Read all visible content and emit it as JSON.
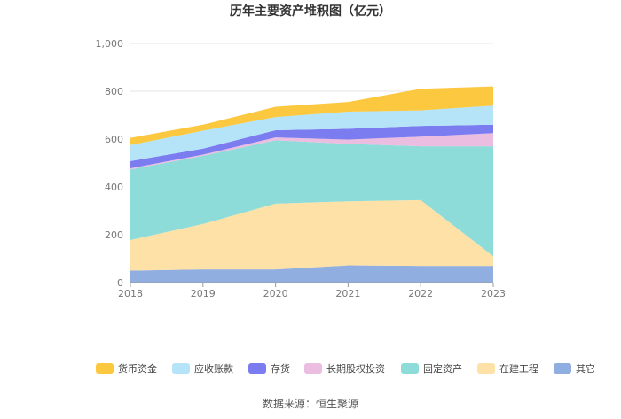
{
  "chart_data": {
    "type": "area",
    "stacked": true,
    "title": "历年主要资产堆积图（亿元）",
    "xlabel": "",
    "ylabel": "",
    "x": [
      "2018",
      "2019",
      "2020",
      "2021",
      "2022",
      "2023"
    ],
    "ylim": [
      0,
      1000
    ],
    "yticks": [
      "0",
      "200",
      "400",
      "600",
      "800",
      "1,000"
    ],
    "grid": true,
    "legend_position": "bottom",
    "series": [
      {
        "name": "其它",
        "color": "#91aee0",
        "values": [
          50,
          55,
          55,
          72,
          70,
          70
        ]
      },
      {
        "name": "在建工程",
        "color": "#fde1a7",
        "values": [
          128,
          190,
          275,
          268,
          275,
          40
        ]
      },
      {
        "name": "固定资产",
        "color": "#8ddcd9",
        "values": [
          295,
          285,
          265,
          240,
          225,
          460
        ]
      },
      {
        "name": "长期股权投资",
        "color": "#ebbde0",
        "values": [
          5,
          5,
          12,
          18,
          40,
          55
        ]
      },
      {
        "name": "存货",
        "color": "#7a7cf0",
        "values": [
          30,
          25,
          30,
          45,
          45,
          35
        ]
      },
      {
        "name": "应收账款",
        "color": "#b5e3f8",
        "values": [
          67,
          75,
          55,
          72,
          65,
          80
        ]
      },
      {
        "name": "货币资金",
        "color": "#fbc83f",
        "values": [
          30,
          25,
          43,
          40,
          90,
          80
        ]
      }
    ],
    "legend_order": [
      "货币资金",
      "应收账款",
      "存货",
      "长期股权投资",
      "固定资产",
      "在建工程",
      "其它"
    ]
  },
  "source": "数据来源：恒生聚源"
}
